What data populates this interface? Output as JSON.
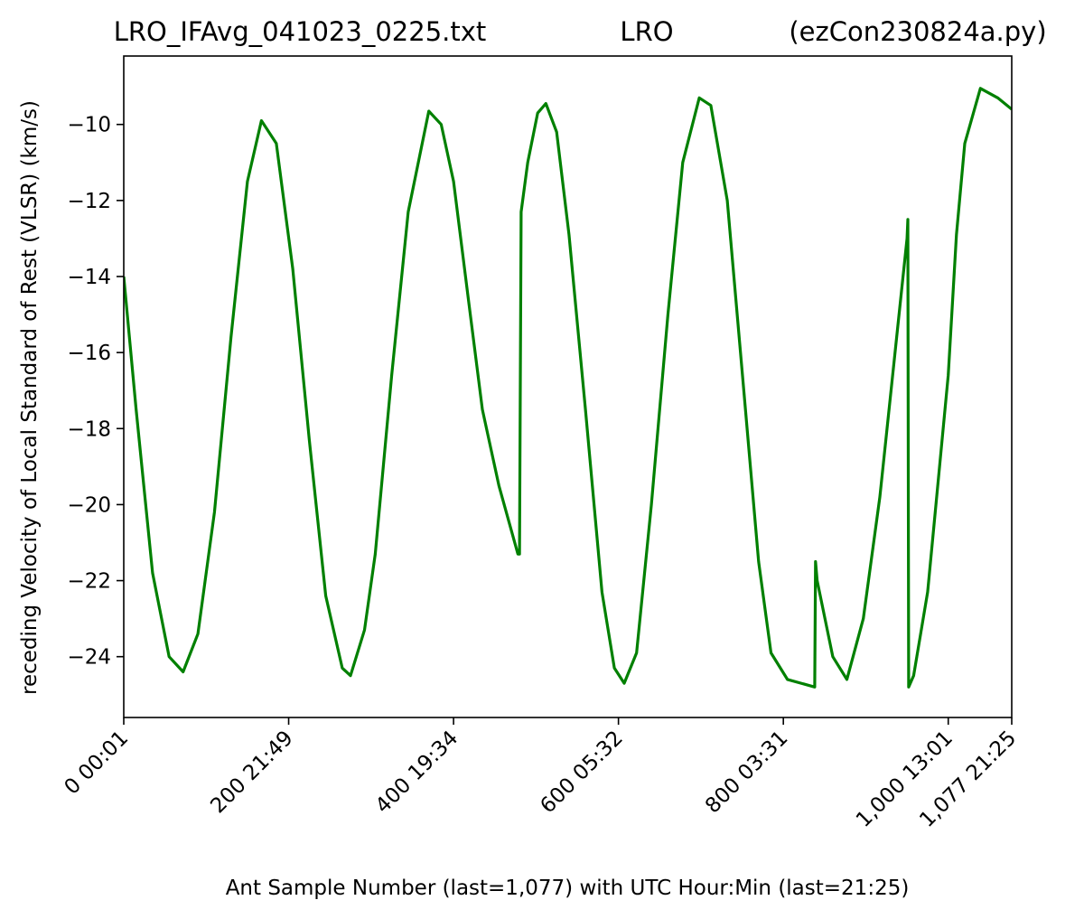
{
  "chart_data": {
    "type": "line",
    "title_left": "LRO_IFAvg_041023_0225.txt",
    "title_center": "LRO",
    "title_right": "(ezCon230824a.py)",
    "xlabel": "Ant Sample Number (last=1,077) with UTC Hour:Min (last=21:25)",
    "ylabel": "receding Velocity of Local Standard of Rest (VLSR) (km/s)",
    "xlim": [
      0,
      1077
    ],
    "ylim": [
      -25.6,
      -8.2
    ],
    "grid": false,
    "legend": "none",
    "x_ticks": [
      {
        "value": 0,
        "label": "0  00:01"
      },
      {
        "value": 200,
        "label": "200  21:49"
      },
      {
        "value": 400,
        "label": "400  19:34"
      },
      {
        "value": 600,
        "label": "600  05:32"
      },
      {
        "value": 800,
        "label": "800  03:31"
      },
      {
        "value": 1000,
        "label": "1,000  13:01"
      },
      {
        "value": 1077,
        "label": "1,077  21:25"
      }
    ],
    "y_ticks": [
      {
        "value": -10,
        "label": "−10"
      },
      {
        "value": -12,
        "label": "−12"
      },
      {
        "value": -14,
        "label": "−14"
      },
      {
        "value": -16,
        "label": "−16"
      },
      {
        "value": -18,
        "label": "−18"
      },
      {
        "value": -20,
        "label": "−20"
      },
      {
        "value": -22,
        "label": "−22"
      },
      {
        "value": -24,
        "label": "−24"
      }
    ],
    "series": [
      {
        "color": "#008000",
        "x": [
          0,
          15,
          35,
          55,
          72,
          90,
          110,
          130,
          150,
          167,
          185,
          205,
          225,
          245,
          265,
          275,
          292,
          305,
          325,
          345,
          370,
          385,
          400,
          418,
          435,
          455,
          478,
          480,
          482,
          490,
          502,
          512,
          525,
          540,
          560,
          580,
          595,
          607,
          622,
          640,
          660,
          678,
          698,
          712,
          732,
          752,
          770,
          785,
          805,
          838,
          839,
          841,
          860,
          877,
          897,
          917,
          950,
          951,
          952,
          958,
          975,
          1000,
          1010,
          1020,
          1039,
          1060,
          1077
        ],
        "y": [
          -14.0,
          -17.5,
          -21.8,
          -24.0,
          -24.4,
          -23.4,
          -20.2,
          -15.6,
          -11.5,
          -9.9,
          -10.5,
          -13.8,
          -18.3,
          -22.4,
          -24.3,
          -24.5,
          -23.3,
          -21.3,
          -16.6,
          -12.3,
          -9.65,
          -10.0,
          -11.5,
          -14.6,
          -17.5,
          -19.5,
          -21.3,
          -21.3,
          -12.3,
          -11.0,
          -9.7,
          -9.45,
          -10.2,
          -12.9,
          -17.5,
          -22.3,
          -24.3,
          -24.7,
          -23.9,
          -20.0,
          -15.0,
          -11.0,
          -9.3,
          -9.5,
          -12.0,
          -17.0,
          -21.5,
          -23.9,
          -24.6,
          -24.8,
          -21.5,
          -22.0,
          -24.0,
          -24.6,
          -23.0,
          -19.8,
          -13.0,
          -12.5,
          -24.8,
          -24.5,
          -22.3,
          -16.6,
          -12.9,
          -10.5,
          -9.05,
          -9.3,
          -9.6
        ]
      }
    ]
  }
}
